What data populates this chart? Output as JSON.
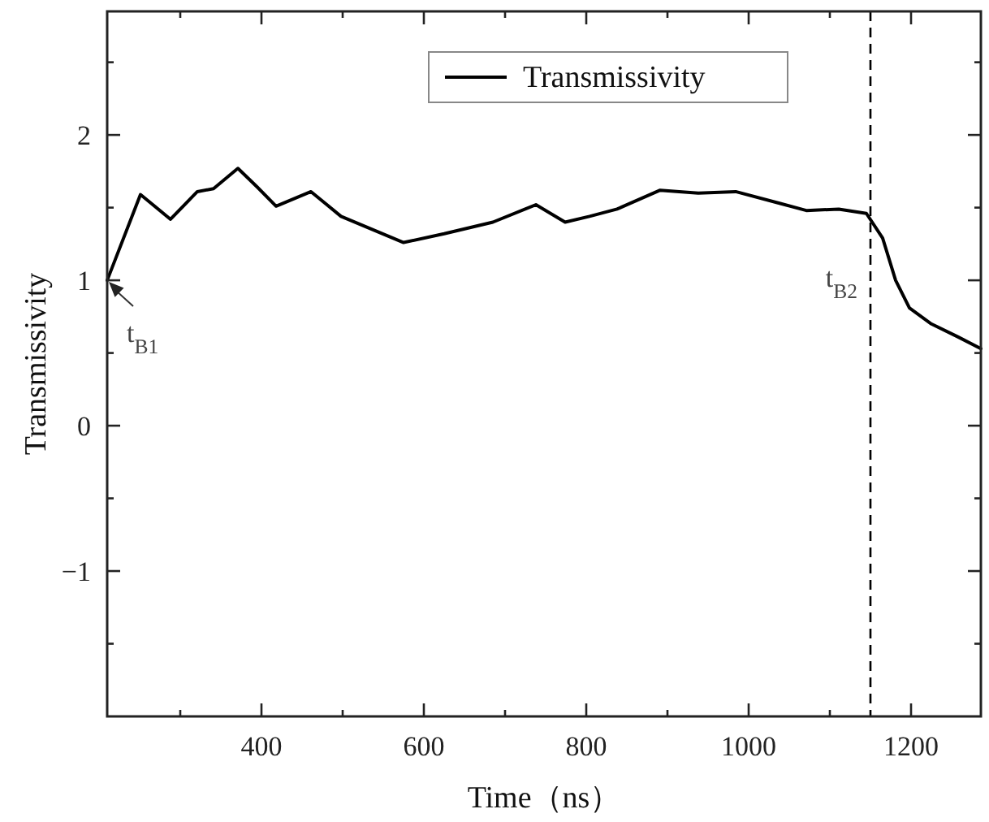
{
  "chart_data": {
    "type": "line",
    "xlabel": "Time（ns）",
    "ylabel": "Transmissivity",
    "x": [
      210,
      251,
      288,
      321,
      341,
      371,
      395,
      418,
      461,
      498,
      575,
      625,
      685,
      738,
      774,
      804,
      838,
      891,
      938,
      984,
      1038,
      1071,
      1111,
      1145,
      1165,
      1181,
      1198,
      1225,
      1258,
      1286
    ],
    "series": [
      {
        "name": "Transmissivity",
        "color": "#000000",
        "values": [
          1.0,
          1.59,
          1.42,
          1.61,
          1.63,
          1.77,
          1.64,
          1.51,
          1.61,
          1.44,
          1.26,
          1.32,
          1.4,
          1.52,
          1.4,
          1.44,
          1.49,
          1.62,
          1.6,
          1.61,
          1.53,
          1.48,
          1.49,
          1.46,
          1.29,
          1.0,
          0.81,
          0.7,
          0.61,
          0.53
        ]
      }
    ],
    "xlim": [
      210,
      1286
    ],
    "ylim": [
      -2,
      2.85
    ],
    "xticks": [
      {
        "value": 300,
        "label": null
      },
      400,
      {
        "value": 500,
        "label": null
      },
      600,
      {
        "value": 700,
        "label": null
      },
      800,
      {
        "value": 900,
        "label": null
      },
      1000,
      {
        "value": 1100,
        "label": null
      },
      1200
    ],
    "yticks": [
      {
        "value": -1.5,
        "label": null
      },
      -1,
      {
        "value": -0.5,
        "label": null
      },
      0,
      {
        "value": 0.5,
        "label": null
      },
      1,
      {
        "value": 1.5,
        "label": null
      },
      2,
      {
        "value": 2.5,
        "label": null
      }
    ],
    "ref_lines": [
      {
        "axis": "x",
        "value": 1150,
        "label": "t$_{B2}$",
        "color": "#000000",
        "line_style": "dashed"
      }
    ],
    "annotations": [
      {
        "text": "t$_{B1}$",
        "x": 210,
        "y": 1
      }
    ],
    "legend": "top right",
    "grid": false,
    "marker": "none",
    "line_style": "solid"
  }
}
